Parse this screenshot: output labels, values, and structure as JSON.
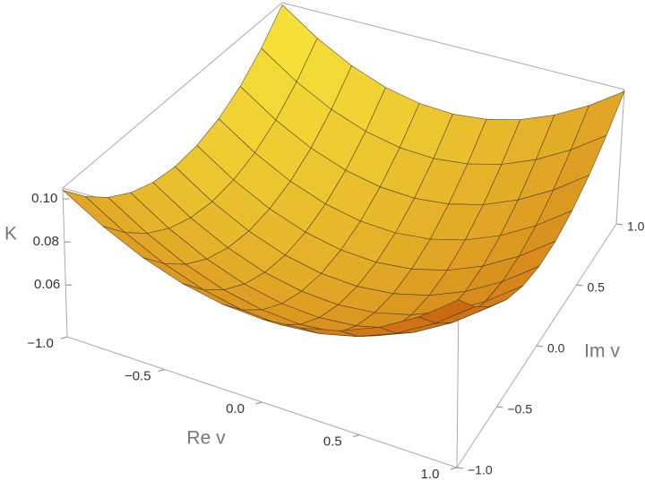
{
  "chart_data": {
    "type": "surface",
    "x_label": "Re v",
    "y_label": "Im v",
    "z_label": "K",
    "x": [
      -1,
      -0.8,
      -0.6,
      -0.4,
      -0.2,
      0,
      0.2,
      0.4,
      0.6,
      0.8,
      1
    ],
    "y": [
      -1,
      -0.8,
      -0.6,
      -0.4,
      -0.2,
      0,
      0.2,
      0.4,
      0.6,
      0.8,
      1
    ],
    "z": [
      [
        0.104,
        0.0925,
        0.0835,
        0.0771,
        0.0733,
        0.072,
        0.0733,
        0.0771,
        0.0835,
        0.0925,
        0.104
      ],
      [
        0.0925,
        0.081,
        0.072,
        0.0656,
        0.0618,
        0.0605,
        0.0618,
        0.0656,
        0.072,
        0.081,
        0.0925
      ],
      [
        0.0835,
        0.072,
        0.063,
        0.0566,
        0.0528,
        0.0515,
        0.0528,
        0.0566,
        0.063,
        0.072,
        0.0835
      ],
      [
        0.0771,
        0.0656,
        0.0566,
        0.0502,
        0.0464,
        0.0451,
        0.0464,
        0.0502,
        0.0566,
        0.0656,
        0.0771
      ],
      [
        0.0733,
        0.0618,
        0.0528,
        0.0464,
        0.0426,
        0.0413,
        0.0426,
        0.0464,
        0.0528,
        0.0618,
        0.0733
      ],
      [
        0.072,
        0.0605,
        0.0515,
        0.0451,
        0.0413,
        0.04,
        0.0413,
        0.0451,
        0.0515,
        0.0605,
        0.072
      ],
      [
        0.0733,
        0.0618,
        0.0528,
        0.0464,
        0.0426,
        0.0413,
        0.0426,
        0.0464,
        0.0528,
        0.0618,
        0.0733
      ],
      [
        0.0771,
        0.0656,
        0.0566,
        0.0502,
        0.0464,
        0.0451,
        0.0464,
        0.0502,
        0.0566,
        0.0656,
        0.0771
      ],
      [
        0.0835,
        0.072,
        0.063,
        0.0566,
        0.0528,
        0.0515,
        0.0528,
        0.0566,
        0.063,
        0.072,
        0.0835
      ],
      [
        0.0925,
        0.081,
        0.072,
        0.0656,
        0.0618,
        0.0605,
        0.0618,
        0.0656,
        0.072,
        0.081,
        0.0925
      ],
      [
        0.104,
        0.0925,
        0.0835,
        0.0771,
        0.0733,
        0.072,
        0.0733,
        0.0771,
        0.0835,
        0.0925,
        0.104
      ]
    ],
    "xlim": [
      -1,
      1
    ],
    "ylim": [
      -1,
      1
    ],
    "zlim": [
      0.036,
      0.105
    ],
    "xticks": [
      {
        "value": -1,
        "label": "−1.0"
      },
      {
        "value": -0.5,
        "label": "−0.5"
      },
      {
        "value": 0,
        "label": "0.0"
      },
      {
        "value": 0.5,
        "label": "0.5"
      },
      {
        "value": 1,
        "label": "1.0"
      }
    ],
    "yticks": [
      {
        "value": -1,
        "label": "−1.0"
      },
      {
        "value": -0.5,
        "label": "−0.5"
      },
      {
        "value": 0,
        "label": "0.0"
      },
      {
        "value": 0.5,
        "label": "0.5"
      },
      {
        "value": 1,
        "label": "1.0"
      }
    ],
    "zticks": [
      0.06,
      0.08,
      {
        "value": 0.1,
        "label": "0.10"
      }
    ],
    "colormap": [
      "#c9650f",
      "#f8e63a"
    ],
    "mesh_color": "#3a3020"
  }
}
